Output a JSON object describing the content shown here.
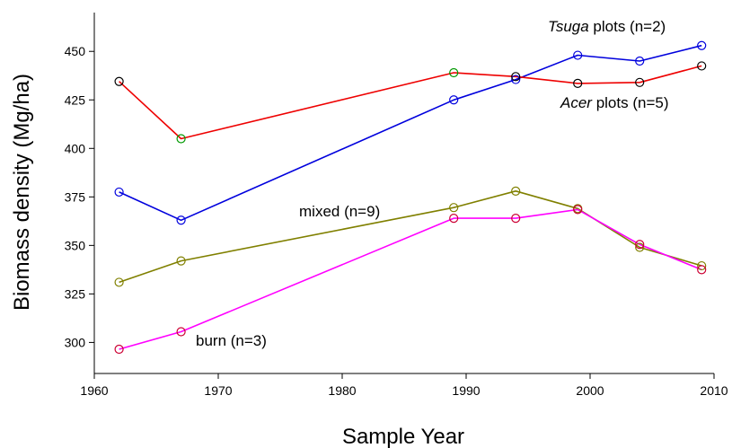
{
  "chart_data": {
    "type": "line",
    "title": "",
    "xlabel": "Sample Year",
    "ylabel": "Biomass density (Mg/ha)",
    "xlim": [
      1960,
      2010
    ],
    "ylim": [
      284,
      470
    ],
    "xticks": [
      1960,
      1970,
      1980,
      1990,
      2000,
      2010
    ],
    "yticks": [
      300,
      325,
      350,
      375,
      400,
      425,
      450
    ],
    "grid": false,
    "legend": "none",
    "series": [
      {
        "name": "Tsuga plots (n=2)",
        "name_italic": "Tsuga",
        "name_rest": " plots (n=2)",
        "color": "#0000dd",
        "x": [
          1962,
          1967,
          1989,
          1994,
          1999,
          2004,
          2009
        ],
        "y": [
          377.5,
          363,
          425,
          435.5,
          448,
          445,
          453
        ],
        "marker_colors": [
          "#0000dd",
          "#0000dd",
          "#0000dd",
          "#0000dd",
          "#0000dd",
          "#0000dd",
          "#0000dd"
        ]
      },
      {
        "name": "Acer plots (n=5)",
        "name_italic": "Acer",
        "name_rest": " plots (n=5)",
        "color": "#ee0000",
        "x": [
          1962,
          1967,
          1989,
          1994,
          1999,
          2004,
          2009
        ],
        "y": [
          434.5,
          405,
          439,
          437,
          433.5,
          434,
          442.5
        ],
        "marker_colors": [
          "#000000",
          "#009900",
          "#009900",
          "#000000",
          "#000000",
          "#000000",
          "#000000"
        ]
      },
      {
        "name": "mixed (n=9)",
        "name_italic": "",
        "name_rest": "mixed (n=9)",
        "color": "#808000",
        "x": [
          1962,
          1967,
          1989,
          1994,
          1999,
          2004,
          2009
        ],
        "y": [
          331,
          342,
          369.5,
          378,
          369,
          349,
          339.5
        ],
        "marker_colors": [
          "#808000",
          "#808000",
          "#808000",
          "#808000",
          "#808000",
          "#808000",
          "#808000"
        ]
      },
      {
        "name": "burn (n=3)",
        "name_italic": "",
        "name_rest": "burn (n=3)",
        "color": "#ff00ff",
        "x": [
          1962,
          1967,
          1989,
          1994,
          1999,
          2004,
          2009
        ],
        "y": [
          296.5,
          305.5,
          364,
          364,
          368.5,
          350.5,
          337.5
        ],
        "marker_colors": [
          "#cc0033",
          "#cc0033",
          "#cc0033",
          "#cc0033",
          "#cc0033",
          "#cc0033",
          "#cc0033"
        ]
      }
    ]
  }
}
